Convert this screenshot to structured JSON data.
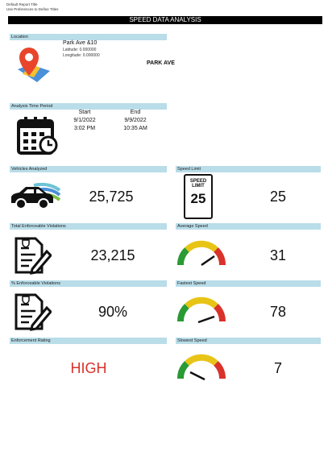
{
  "header": {
    "small_title": "Default Report Title",
    "small_subtitle": "Use Preferences to Define Titles",
    "title": "SPEED DATA ANALYSIS"
  },
  "location": {
    "label": "Location",
    "name": "Park Ave &10",
    "latitude": "Latitude: 0.000000",
    "longitude": "Longitude: 0.000000",
    "street": "PARK AVE"
  },
  "time_period": {
    "label": "Analysis Time Period",
    "start_label": "Start",
    "start_date": "9/1/2022",
    "start_time": "3:02 PM",
    "end_label": "End",
    "end_date": "9/9/2022",
    "end_time": "10:35 AM"
  },
  "vehicles": {
    "label": "Vehicles Analyzed",
    "value": "25,725"
  },
  "speed_limit": {
    "label": "Speed Limit",
    "sign_top": "SPEED",
    "sign_middle": "LIMIT",
    "sign_value": "25",
    "value": "25"
  },
  "violations": {
    "label": "Total Enforceable Violations",
    "value": "23,215"
  },
  "average_speed": {
    "label": "Average Speed",
    "value": "31"
  },
  "violation_percent": {
    "label": "% Enforceable Violations",
    "value": "90%"
  },
  "fastest_speed": {
    "label": "Fastest Speed",
    "value": "78"
  },
  "rating": {
    "label": "Enforcement Rating",
    "value": "HIGH"
  },
  "slowest_speed": {
    "label": "Slowest Speed",
    "value": "7"
  }
}
